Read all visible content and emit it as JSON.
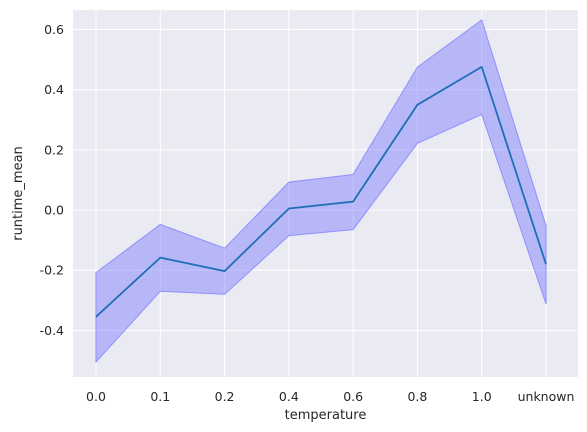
{
  "chart_data": {
    "type": "line",
    "categories": [
      "0.0",
      "0.1",
      "0.2",
      "0.4",
      "0.6",
      "0.8",
      "1.0",
      "unknown"
    ],
    "series": [
      {
        "values": [
          -0.355,
          -0.158,
          -0.203,
          0.005,
          0.028,
          0.35,
          0.476,
          -0.18
        ],
        "lower": [
          -0.505,
          -0.27,
          -0.28,
          -0.085,
          -0.065,
          0.222,
          0.318,
          -0.312
        ],
        "upper": [
          -0.208,
          -0.048,
          -0.127,
          0.093,
          0.118,
          0.475,
          0.632,
          -0.052
        ]
      }
    ],
    "title": "",
    "xlabel": "temperature",
    "ylabel": "runtime_mean",
    "ylim": [
      -0.555,
      0.665
    ],
    "yticks": [
      "-0.4",
      "-0.2",
      "0.0",
      "0.2",
      "0.4",
      "0.6"
    ],
    "grid": true,
    "legend": "none",
    "colors": {
      "background": "#eaeaf2",
      "grid": "#ffffff",
      "line": "#1f6fb5",
      "band_fill": "#7b7bff",
      "band_edge": "#8f8fff"
    }
  }
}
